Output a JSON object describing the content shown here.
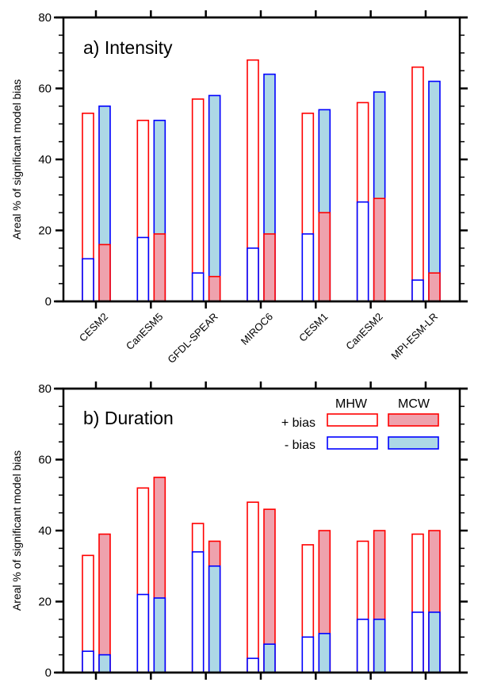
{
  "colors": {
    "pos_edge": "#ff0000",
    "neg_edge": "#0000ff",
    "mcw_pos_fill": "#eea2ad",
    "mcw_neg_fill": "#add8e6",
    "mhw_fill": "#ffffff",
    "axis": "#000000"
  },
  "legend": {
    "col_headers": [
      "MHW",
      "MCW"
    ],
    "row_labels": [
      "+ bias",
      "-  bias"
    ]
  },
  "chart_data": [
    {
      "type": "bar",
      "title": "a) Intensity",
      "ylabel": "Areal % of significant model bias",
      "xlabel": "",
      "ylim": [
        0,
        80
      ],
      "yticks": [
        0,
        20,
        40,
        60,
        80
      ],
      "grid": false,
      "categories": [
        "CESM2",
        "CanESM5",
        "GFDL-SPEAR",
        "MIROC6",
        "CESM1",
        "CanESM2",
        "MPI-ESM-LR"
      ],
      "show_category_labels": true,
      "legend": "none",
      "series": [
        {
          "name": "MHW + bias",
          "values": [
            53,
            51,
            57,
            68,
            53,
            56,
            66
          ]
        },
        {
          "name": "MHW - bias",
          "values": [
            12,
            18,
            8,
            15,
            19,
            28,
            6
          ]
        },
        {
          "name": "MCW + bias",
          "values": [
            16,
            19,
            7,
            19,
            25,
            29,
            8
          ]
        },
        {
          "name": "MCW - bias",
          "values": [
            55,
            51,
            58,
            64,
            54,
            59,
            62
          ]
        }
      ]
    },
    {
      "type": "bar",
      "title": "b) Duration",
      "ylabel": "Areal % of significant model bias",
      "xlabel": "",
      "ylim": [
        0,
        80
      ],
      "yticks": [
        0,
        20,
        40,
        60,
        80
      ],
      "grid": false,
      "categories": [
        "CESM2",
        "CanESM5",
        "GFDL-SPEAR",
        "MIROC6",
        "CESM1",
        "CanESM2",
        "MPI-ESM-LR"
      ],
      "show_category_labels": false,
      "legend": "top-right",
      "series": [
        {
          "name": "MHW + bias",
          "values": [
            33,
            52,
            42,
            48,
            36,
            37,
            39
          ]
        },
        {
          "name": "MHW - bias",
          "values": [
            6,
            22,
            34,
            4,
            10,
            15,
            17
          ]
        },
        {
          "name": "MCW + bias",
          "values": [
            39,
            55,
            37,
            46,
            40,
            40,
            40
          ]
        },
        {
          "name": "MCW - bias",
          "values": [
            5,
            21,
            30,
            8,
            11,
            15,
            17
          ]
        }
      ]
    }
  ]
}
